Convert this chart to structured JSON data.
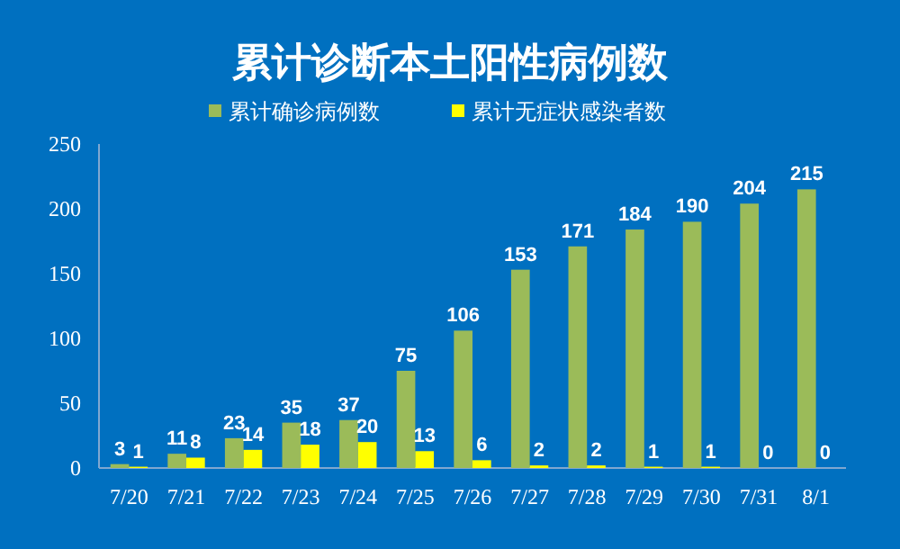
{
  "chart_data": {
    "type": "bar",
    "title": "累计诊断本土阳性病例数",
    "categories": [
      "7/20",
      "7/21",
      "7/22",
      "7/23",
      "7/24",
      "7/25",
      "7/26",
      "7/27",
      "7/28",
      "7/29",
      "7/30",
      "7/31",
      "8/1"
    ],
    "series": [
      {
        "name": "累计确诊病例数",
        "color": "#9bbb59",
        "values": [
          3,
          11,
          23,
          35,
          37,
          75,
          106,
          153,
          171,
          184,
          190,
          204,
          215
        ]
      },
      {
        "name": "累计无症状感染者数",
        "color": "#ffff00",
        "values": [
          1,
          8,
          14,
          18,
          20,
          13,
          6,
          2,
          2,
          1,
          1,
          0,
          0
        ]
      }
    ],
    "ylim": [
      0,
      250
    ],
    "yticks": [
      0,
      50,
      100,
      150,
      200,
      250
    ],
    "data_labels": true,
    "legend": "top",
    "grid": false
  }
}
